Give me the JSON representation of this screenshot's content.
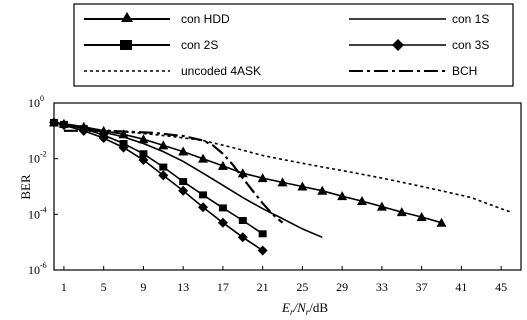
{
  "chart_data": {
    "type": "line",
    "ylabel": "BER",
    "xlabel": {
      "E": "E",
      "sub1": "r",
      "slash": "/N",
      "sub2": "r",
      "unit": "/dB"
    },
    "x_ticks": [
      "1",
      "5",
      "9",
      "13",
      "17",
      "21",
      "25",
      "29",
      "33",
      "37",
      "41",
      "45"
    ],
    "x_tick_values": [
      1,
      5,
      9,
      13,
      17,
      21,
      25,
      29,
      33,
      37,
      41,
      45
    ],
    "y_ticks": [
      {
        "base": "10",
        "exp": "0",
        "value": 1
      },
      {
        "base": "10",
        "exp": "-2",
        "value": 0.01
      },
      {
        "base": "10",
        "exp": "-4",
        "value": 0.0001
      },
      {
        "base": "10",
        "exp": "-6",
        "value": 1e-06
      }
    ],
    "xlim": [
      0,
      47
    ],
    "ylim": [
      1e-06,
      1
    ],
    "yscale": "log",
    "grid": false,
    "legend_position": "top",
    "series": [
      {
        "name": "con HDD",
        "style": "solid",
        "marker": "triangle",
        "color": "#000000",
        "x": [
          0,
          1,
          3,
          5,
          7,
          9,
          11,
          13,
          15,
          17,
          19,
          21,
          23,
          25,
          27,
          29,
          31,
          33,
          35,
          37,
          39
        ],
        "y": [
          0.2,
          0.18,
          0.14,
          0.1,
          0.075,
          0.05,
          0.03,
          0.018,
          0.01,
          0.0055,
          0.003,
          0.002,
          0.0014,
          0.001,
          0.0007,
          0.00045,
          0.0003,
          0.00019,
          0.00012,
          8e-05,
          5e-05
        ]
      },
      {
        "name": "con 1S",
        "style": "solid",
        "marker": "none",
        "color": "#000000",
        "x": [
          0,
          3,
          5,
          7,
          9,
          11,
          13,
          15,
          17,
          19,
          21,
          23,
          25,
          27
        ],
        "y": [
          0.2,
          0.13,
          0.09,
          0.06,
          0.035,
          0.018,
          0.008,
          0.003,
          0.0011,
          0.0004,
          0.00016,
          7e-05,
          3e-05,
          1.5e-05
        ]
      },
      {
        "name": "con 2S",
        "style": "solid",
        "marker": "square",
        "color": "#000000",
        "x": [
          0,
          1,
          3,
          5,
          7,
          9,
          11,
          13,
          15,
          17,
          19,
          21
        ],
        "y": [
          0.2,
          0.17,
          0.12,
          0.07,
          0.035,
          0.015,
          0.005,
          0.0015,
          0.0005,
          0.00017,
          6e-05,
          2e-05
        ]
      },
      {
        "name": "con 3S",
        "style": "solid",
        "marker": "diamond",
        "color": "#000000",
        "x": [
          0,
          1,
          3,
          5,
          7,
          9,
          11,
          13,
          15,
          17,
          19,
          21
        ],
        "y": [
          0.2,
          0.16,
          0.1,
          0.055,
          0.025,
          0.009,
          0.0025,
          0.0007,
          0.00018,
          5e-05,
          1.5e-05,
          5e-06
        ]
      },
      {
        "name": "uncoded 4ASK",
        "style": "dotted",
        "marker": "none",
        "color": "#000000",
        "x": [
          3,
          6,
          9,
          12,
          15,
          18,
          21,
          24,
          27,
          30,
          33,
          36,
          39,
          42,
          45,
          46
        ],
        "y": [
          0.12,
          0.1,
          0.08,
          0.062,
          0.045,
          0.025,
          0.013,
          0.008,
          0.005,
          0.0032,
          0.002,
          0.0012,
          0.0007,
          0.0004,
          0.00016,
          0.00012
        ]
      },
      {
        "name": "BCH",
        "style": "dashdot",
        "marker": "none",
        "color": "#000000",
        "x": [
          1,
          4,
          7,
          10,
          13,
          15,
          16,
          17,
          18,
          19,
          20,
          21,
          22,
          23
        ],
        "y": [
          0.1,
          0.1,
          0.095,
          0.085,
          0.065,
          0.045,
          0.03,
          0.015,
          0.006,
          0.002,
          0.0007,
          0.00025,
          0.0001,
          5e-05
        ]
      }
    ]
  }
}
